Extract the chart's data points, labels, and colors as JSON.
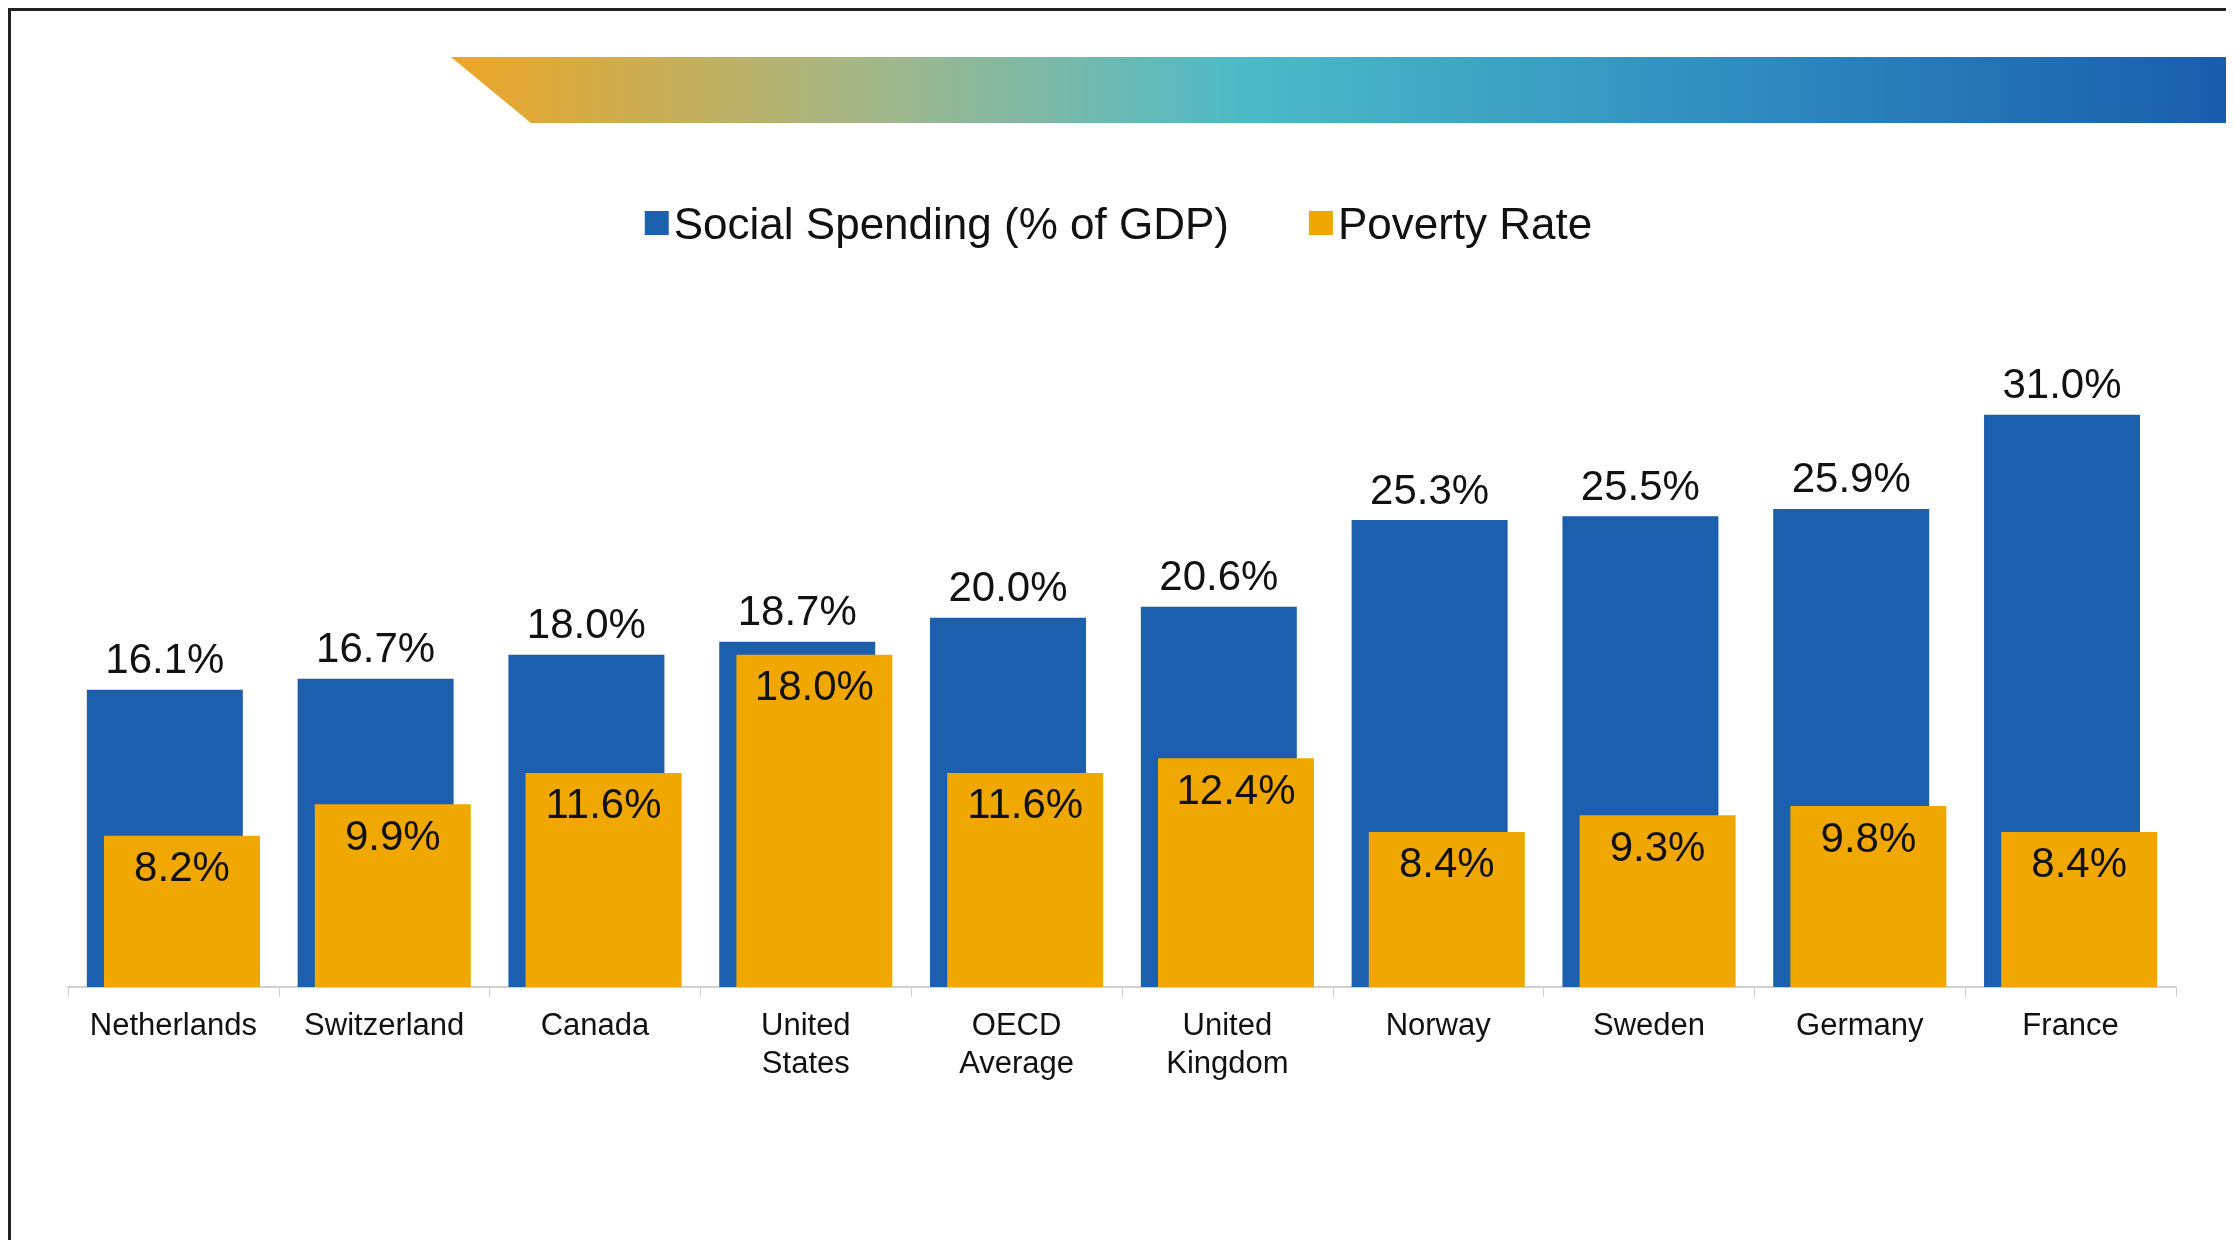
{
  "chart_data": {
    "type": "bar",
    "categories": [
      "Netherlands",
      "Switzerland",
      "Canada",
      "United States",
      "OECD Average",
      "United Kingdom",
      "Norway",
      "Sweden",
      "Germany",
      "France"
    ],
    "series": [
      {
        "name": "Social Spending (% of GDP)",
        "color": "#1b5fae",
        "values": [
          16.1,
          16.7,
          18.0,
          18.7,
          20.0,
          20.6,
          25.3,
          25.5,
          25.9,
          31.0
        ],
        "value_labels": [
          "16.1%",
          "16.7%",
          "18.0%",
          "18.7%",
          "20.0%",
          "20.6%",
          "25.3%",
          "25.5%",
          "25.9%",
          "31.0%"
        ]
      },
      {
        "name": "Poverty Rate",
        "color": "#f0a800",
        "values": [
          8.2,
          9.9,
          11.6,
          18.0,
          11.6,
          12.4,
          8.4,
          9.3,
          9.8,
          8.4
        ],
        "value_labels": [
          "8.2%",
          "9.9%",
          "11.6%",
          "18.0%",
          "11.6%",
          "12.4%",
          "8.4%",
          "9.3%",
          "9.8%",
          "8.4%"
        ]
      }
    ],
    "legend": "top"
  }
}
